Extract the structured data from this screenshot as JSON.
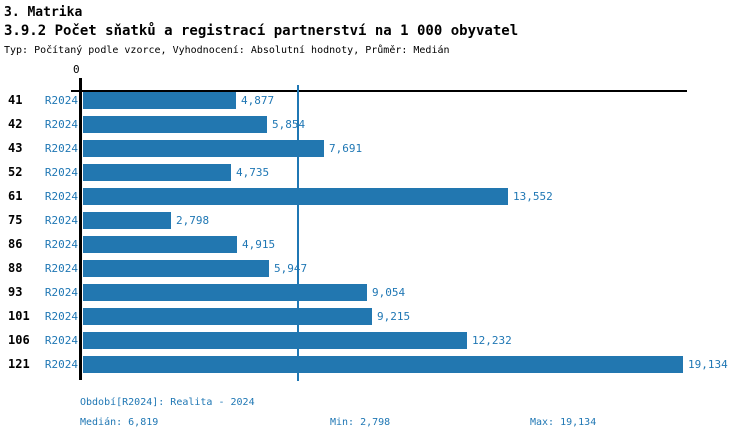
{
  "header": {
    "title": "3. Matrika",
    "subtitle": "3.9.2 Počet sňatků a registrací partnerství na 1 000 obyvatel",
    "meta": "Typ: Počítaný podle vzorce, Vyhodnocení: Absolutní hodnoty, Průměr: Medián"
  },
  "axis": {
    "zero_tick_label": "0"
  },
  "chart_data": {
    "type": "bar",
    "orientation": "horizontal",
    "title": "3.9.2 Počet sňatků a registrací partnerství na 1 000 obyvatel",
    "categories": [
      "41",
      "42",
      "43",
      "52",
      "61",
      "75",
      "86",
      "88",
      "93",
      "101",
      "106",
      "121"
    ],
    "series_label": "R2024",
    "values": [
      4.877,
      5.854,
      7.691,
      4.735,
      13.552,
      2.798,
      4.915,
      5.947,
      9.054,
      9.215,
      12.232,
      19.134
    ],
    "value_labels": [
      "4,877",
      "5,854",
      "7,691",
      "4,735",
      "13,552",
      "2,798",
      "4,915",
      "5,947",
      "9,054",
      "9,215",
      "12,232",
      "19,134"
    ],
    "xlim": [
      0,
      19.6
    ],
    "median": 6.819,
    "min": 2.798,
    "max": 19.134,
    "grid": false,
    "legend_position": "none",
    "bar_color": "#2277b0",
    "label_color": "#1f77b4",
    "axis_color": "#000000"
  },
  "footer": {
    "period": "Období[R2024]: Realita - 2024",
    "median": "Medián: 6,819",
    "min": "Min: 2,798",
    "max": "Max: 19,134"
  }
}
